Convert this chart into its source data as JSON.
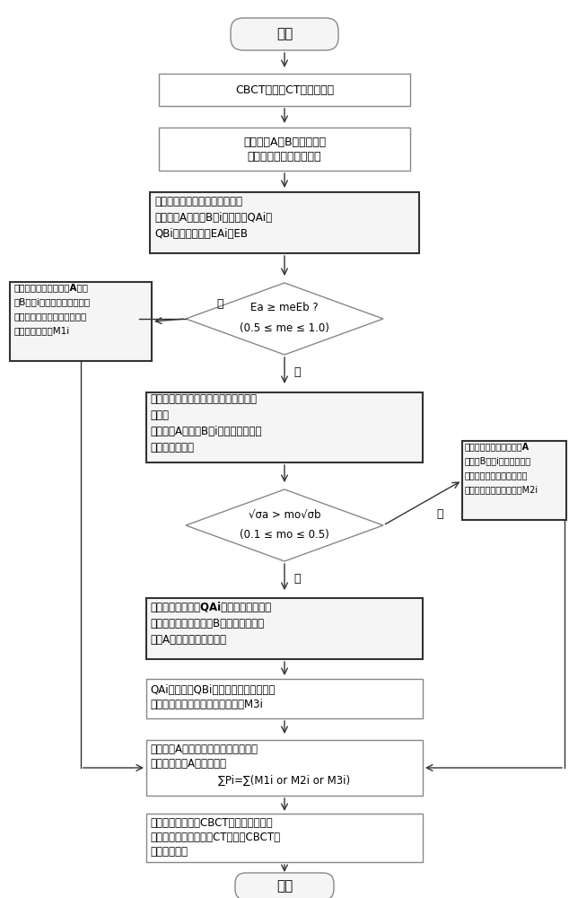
{
  "bg_color": "#ffffff",
  "border_light": "#aaaaaa",
  "border_dark": "#555555",
  "fill_white": "#ffffff",
  "fill_gray": "#f0f0f0",
  "fill_bold": "#f2f2f2",
  "arrow_color": "#333333",
  "start_text": "开始",
  "end_text": "结束",
  "preprocess_text": "CBCT图像与CT图像预处理",
  "establish_text": "建立图像A与B局部控制点\n并确定控制点邻域与尺寸",
  "level1_line1": "进入第一级评价（暗区评价）：",
  "level1_line2": "比较图像A与图像B第i个控制点QAi、",
  "level1_line3": "QBi邻域灰度均值EAi与EB",
  "diamond1_line1": "Ea ≥ meEb ?",
  "diamond1_line2": "(0.5 ≤ me ≤ 1.0)",
  "left1_line1": "邻域为非暗区，对图像A与图",
  "left1_line2": "像B的第i个控制点邻域进行直",
  "left1_line3": "方图校正配准，得到局部控制",
  "left1_line4": "点邻域形变矩阵M1i",
  "level2_line1": "邻域为暗区，进入第二级评价（伪影评",
  "level2_line2": "价）：",
  "level2_line3": "比较图像A与图像B第i个控制点邻域灰",
  "level2_line4": "度均方差平方根",
  "diamond2_line1": "√σa > mo√σb",
  "diamond2_line2": "(0.1 ≤ mo ≤ 0.5)",
  "right2_line1": "邻域为非伪影区，对图像A",
  "right2_line2": "与图像B的第i个控制点邻域",
  "right2_line3": "进行线性灰度值映射，得到",
  "right2_line4": "局部控制点邻域形变矩阵M2i",
  "artifact_line1": "邻域为伪影区，对QAi邻域灰度进行局部",
  "artifact_line2": "放大，放大系数为图像B邻域灰度均值与",
  "artifact_line3": "图像A邻域灰度均值的比值",
  "hist3_line1": "QAi邻域参照QBi邻域进行直方图校正配",
  "hist3_line2": "准，得到局部控制点邻域形变矩阵M3i",
  "agg_line1": "汇总图像A的所有控制点邻域的形变矩",
  "agg_line2": "阵，得到图像A的形变矩阵",
  "agg_line3": "∑Pi=∑(M1i or M2i or M3i)",
  "final_line1": "对所有待配准层的CBCT图像进行局部灰",
  "final_line2": "度校正配准，完成一组CT与一组CBCT图",
  "final_line3": "像的形变配准",
  "yes_text": "是",
  "no_text": "否"
}
